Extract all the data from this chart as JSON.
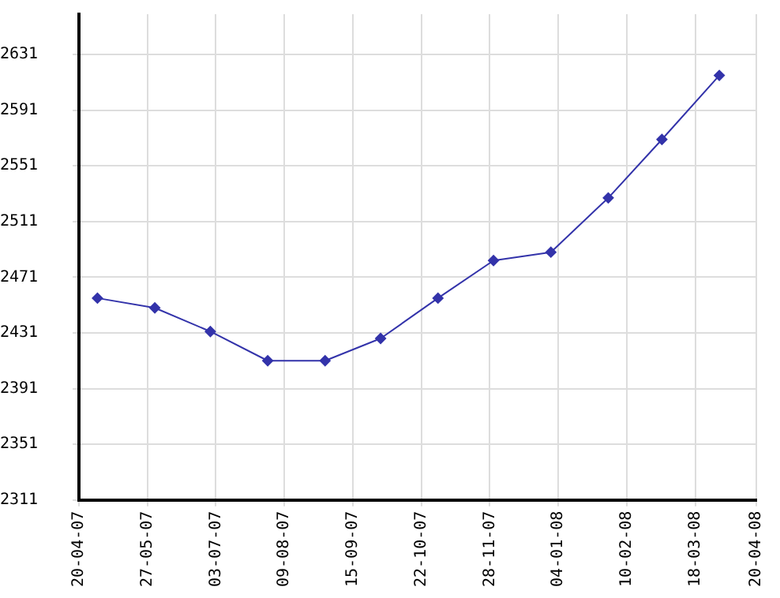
{
  "chart_data": {
    "type": "line",
    "x": [
      "2007-04-30",
      "2007-05-31",
      "2007-06-30",
      "2007-07-31",
      "2007-08-31",
      "2007-09-30",
      "2007-10-31",
      "2007-11-30",
      "2007-12-31",
      "2008-01-31",
      "2008-02-29",
      "2008-03-31"
    ],
    "series": [
      {
        "color": "#3333aa",
        "values": [
          2456,
          2449,
          2432,
          2411,
          2411,
          2427,
          2456,
          2483,
          2489,
          2528,
          2570,
          2616
        ]
      }
    ],
    "xlim": [
      "2007-04-20",
      "2008-04-20"
    ],
    "xticks": [
      {
        "value": "2007-04-20",
        "label": "20-04-07"
      },
      {
        "value": "2007-05-27",
        "label": "27-05-07"
      },
      {
        "value": "2007-07-03",
        "label": "03-07-07"
      },
      {
        "value": "2007-08-09",
        "label": "09-08-07"
      },
      {
        "value": "2007-09-15",
        "label": "15-09-07"
      },
      {
        "value": "2007-10-22",
        "label": "22-10-07"
      },
      {
        "value": "2007-11-28",
        "label": "28-11-07"
      },
      {
        "value": "2008-01-04",
        "label": "04-01-08"
      },
      {
        "value": "2008-02-10",
        "label": "10-02-08"
      },
      {
        "value": "2008-03-18",
        "label": "18-03-08"
      },
      {
        "value": "2008-04-20",
        "label": "20-04-08"
      }
    ],
    "ylim": [
      2311,
      2660
    ],
    "yticks": [
      2311,
      2351,
      2391,
      2431,
      2471,
      2511,
      2551,
      2591,
      2631
    ],
    "grid": true,
    "legend": false,
    "marker": "diamond",
    "line_style": "solid"
  }
}
